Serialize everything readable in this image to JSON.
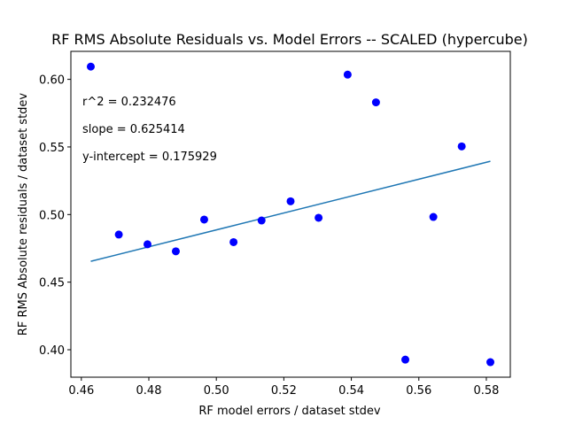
{
  "chart_data": {
    "type": "scatter",
    "title": "RF RMS Absolute Residuals vs. Model Errors -- SCALED (hypercube)",
    "xlabel": "RF model errors / dataset stdev",
    "ylabel": "RF RMS Absolute residuals / dataset stdev",
    "xlim": [
      0.4569,
      0.5871
    ],
    "ylim": [
      0.3797,
      0.6207
    ],
    "xticks": [
      0.46,
      0.48,
      0.5,
      0.52,
      0.54,
      0.56,
      0.58
    ],
    "xtick_labels": [
      "0.46",
      "0.48",
      "0.50",
      "0.52",
      "0.54",
      "0.56",
      "0.58"
    ],
    "yticks": [
      0.4,
      0.45,
      0.5,
      0.55,
      0.6
    ],
    "ytick_labels": [
      "0.40",
      "0.45",
      "0.50",
      "0.55",
      "0.60"
    ],
    "grid": false,
    "points_color": "#0000ff",
    "line_color": "#1f77b4",
    "points": [
      {
        "x": 0.4628,
        "y": 0.6094
      },
      {
        "x": 0.4711,
        "y": 0.4852
      },
      {
        "x": 0.4796,
        "y": 0.478
      },
      {
        "x": 0.488,
        "y": 0.4728
      },
      {
        "x": 0.4964,
        "y": 0.4963
      },
      {
        "x": 0.5051,
        "y": 0.4796
      },
      {
        "x": 0.5134,
        "y": 0.4956
      },
      {
        "x": 0.522,
        "y": 0.5098
      },
      {
        "x": 0.5303,
        "y": 0.4976
      },
      {
        "x": 0.5389,
        "y": 0.6035
      },
      {
        "x": 0.5473,
        "y": 0.583
      },
      {
        "x": 0.556,
        "y": 0.3927
      },
      {
        "x": 0.5643,
        "y": 0.4982
      },
      {
        "x": 0.5727,
        "y": 0.5504
      },
      {
        "x": 0.5812,
        "y": 0.3908
      }
    ],
    "fit_line": {
      "x": [
        0.4628,
        0.5812
      ],
      "y": [
        0.4654,
        0.5394
      ]
    },
    "annotations": [
      "r^2 = 0.232476",
      "slope = 0.625414",
      "y-intercept = 0.175929"
    ]
  }
}
